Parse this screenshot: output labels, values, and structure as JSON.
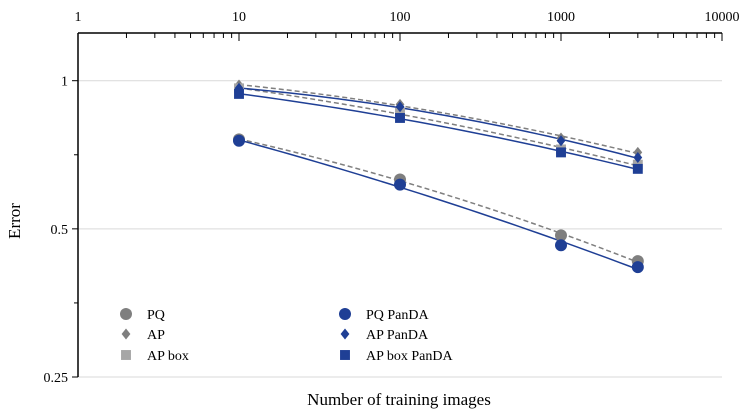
{
  "chart_data": {
    "type": "scatter",
    "xscale": "log",
    "yscale": "log",
    "xlabel": "Number of training images",
    "ylabel": "Error",
    "xlim": [
      1,
      10000
    ],
    "ylim": [
      0.25,
      1.25
    ],
    "x_ticks": [
      1,
      10,
      100,
      1000,
      10000
    ],
    "x_tick_labels": [
      "1",
      "10",
      "100",
      "1000",
      "10000"
    ],
    "y_ticks": [
      0.25,
      0.5,
      1
    ],
    "y_tick_labels": [
      "0.25",
      "0.5",
      "1"
    ],
    "grid": "horizontal",
    "legend_position": "bottom-left",
    "series": [
      {
        "name": "PQ",
        "marker": "circle",
        "color": "#7f7f7f",
        "fit_line": "dashed",
        "x": [
          10,
          100,
          1000,
          3000
        ],
        "y": [
          0.76,
          0.63,
          0.485,
          0.43
        ]
      },
      {
        "name": "AP",
        "marker": "diamond",
        "color": "#7f7f7f",
        "fit_line": "dashed",
        "x": [
          10,
          100,
          1000,
          3000
        ],
        "y": [
          0.98,
          0.895,
          0.765,
          0.715
        ]
      },
      {
        "name": "AP box",
        "marker": "square",
        "color": "#a6a6a6",
        "fit_line": "dashed",
        "x": [
          10,
          100,
          1000,
          3000
        ],
        "y": [
          0.965,
          0.86,
          0.725,
          0.675
        ]
      },
      {
        "name": "PQ PanDA",
        "marker": "circle",
        "color": "#1f3f95",
        "fit_line": "solid",
        "x": [
          10,
          100,
          1000,
          3000
        ],
        "y": [
          0.755,
          0.615,
          0.463,
          0.418
        ]
      },
      {
        "name": "AP PanDA",
        "marker": "diamond",
        "color": "#1f3f95",
        "fit_line": "solid",
        "x": [
          10,
          100,
          1000,
          3000
        ],
        "y": [
          0.965,
          0.885,
          0.755,
          0.698
        ]
      },
      {
        "name": "AP box PanDA",
        "marker": "square",
        "color": "#1f3f95",
        "fit_line": "solid",
        "x": [
          10,
          100,
          1000,
          3000
        ],
        "y": [
          0.94,
          0.84,
          0.715,
          0.662
        ]
      }
    ]
  }
}
